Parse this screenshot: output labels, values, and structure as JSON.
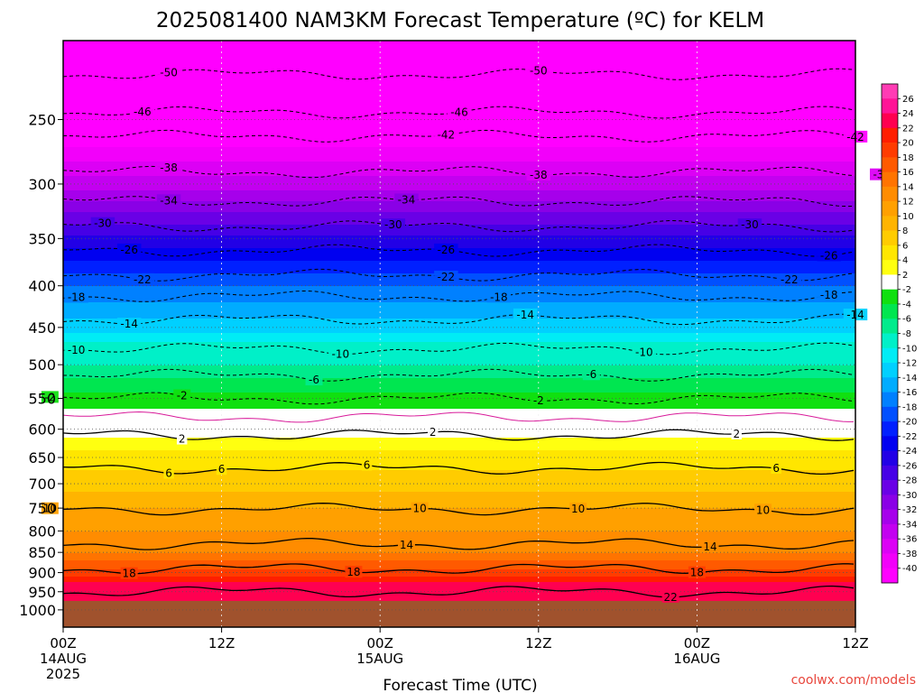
{
  "chart_data": {
    "type": "heatmap",
    "title": "2025081400 NAM3KM Forecast Temperature (ºC) for KELM",
    "xlabel": "Forecast Time (UTC)",
    "ylabel": "",
    "credit": "coolwx.com/models",
    "y_scale": "log-pressure",
    "ylim_hPa": [
      1050,
      200
    ],
    "y_ticks": [
      250,
      300,
      350,
      400,
      450,
      500,
      550,
      600,
      650,
      700,
      750,
      800,
      850,
      900,
      950,
      1000
    ],
    "x_ticks": [
      {
        "label": "00Z",
        "date": "14AUG",
        "year": "2025"
      },
      {
        "label": "12Z",
        "date": "",
        "year": ""
      },
      {
        "label": "00Z",
        "date": "15AUG",
        "year": ""
      },
      {
        "label": "12Z",
        "date": "",
        "year": ""
      },
      {
        "label": "00Z",
        "date": "16AUG",
        "year": ""
      },
      {
        "label": "12Z",
        "date": "",
        "year": ""
      }
    ],
    "x_hours": [
      0,
      12,
      24,
      36,
      48,
      60
    ],
    "grid": true,
    "ground_below_hPa": 975,
    "profile": [
      {
        "p": 975,
        "t": 24
      },
      {
        "p": 925,
        "t": 22
      },
      {
        "p": 900,
        "t": 19
      },
      {
        "p": 850,
        "t": 14
      },
      {
        "p": 800,
        "t": 12
      },
      {
        "p": 750,
        "t": 10
      },
      {
        "p": 700,
        "t": 7
      },
      {
        "p": 650,
        "t": 5
      },
      {
        "p": 615,
        "t": 2
      },
      {
        "p": 600,
        "t": 0
      },
      {
        "p": 578,
        "t": -1
      },
      {
        "p": 565,
        "t": -2
      },
      {
        "p": 550,
        "t": -3
      },
      {
        "p": 500,
        "t": -8
      },
      {
        "p": 470,
        "t": -10
      },
      {
        "p": 450,
        "t": -13
      },
      {
        "p": 400,
        "t": -18
      },
      {
        "p": 360,
        "t": -24
      },
      {
        "p": 330,
        "t": -29
      },
      {
        "p": 300,
        "t": -35
      },
      {
        "p": 270,
        "t": -40
      },
      {
        "p": 250,
        "t": -44
      },
      {
        "p": 200,
        "t": -54
      }
    ],
    "contours": [
      {
        "t": -50,
        "p": 220,
        "style": "dashed",
        "labels": [
          [
            6,
            "-50"
          ],
          [
            34,
            "-50"
          ]
        ]
      },
      {
        "t": -46,
        "p": 245,
        "style": "dashed",
        "labels": [
          [
            4,
            "-46"
          ],
          [
            28,
            "-46"
          ]
        ]
      },
      {
        "t": -42,
        "p": 262,
        "style": "dashed",
        "labels": [
          [
            27,
            "-42"
          ],
          [
            58,
            "-42"
          ]
        ]
      },
      {
        "t": -38,
        "p": 290,
        "style": "dashed",
        "labels": [
          [
            6,
            "-38"
          ],
          [
            34,
            "-38"
          ],
          [
            60,
            "-38"
          ]
        ]
      },
      {
        "t": -34,
        "p": 315,
        "style": "dashed",
        "labels": [
          [
            6,
            "-34"
          ],
          [
            24,
            "-34"
          ]
        ]
      },
      {
        "t": -30,
        "p": 338,
        "style": "dashed",
        "labels": [
          [
            1,
            "-30"
          ],
          [
            23,
            "-30"
          ],
          [
            50,
            "-30"
          ]
        ]
      },
      {
        "t": -26,
        "p": 362,
        "style": "dashed",
        "labels": [
          [
            3,
            "-26"
          ],
          [
            27,
            "-26"
          ],
          [
            56,
            "-26"
          ]
        ]
      },
      {
        "t": -22,
        "p": 388,
        "style": "dashed",
        "labels": [
          [
            4,
            "-22"
          ],
          [
            27,
            "-22"
          ],
          [
            53,
            "-22"
          ]
        ]
      },
      {
        "t": -18,
        "p": 412,
        "style": "dashed",
        "labels": [
          [
            -1,
            "-18"
          ],
          [
            31,
            "-18"
          ],
          [
            56,
            "-18"
          ]
        ]
      },
      {
        "t": -14,
        "p": 440,
        "style": "dashed",
        "labels": [
          [
            3,
            "-14"
          ],
          [
            33,
            "-14"
          ],
          [
            58,
            "-14"
          ]
        ]
      },
      {
        "t": -10,
        "p": 478,
        "style": "dashed",
        "labels": [
          [
            -1,
            "-10"
          ],
          [
            19,
            "-10"
          ],
          [
            42,
            "-10"
          ]
        ]
      },
      {
        "t": -6,
        "p": 515,
        "style": "dashed",
        "labels": [
          [
            17,
            "-6"
          ],
          [
            38,
            "-6"
          ]
        ]
      },
      {
        "t": -2,
        "p": 550,
        "style": "dashed",
        "labels": [
          [
            -3,
            "-2"
          ],
          [
            7,
            "-2"
          ],
          [
            34,
            "-2"
          ]
        ]
      },
      {
        "t": 0,
        "p": 580,
        "style": "magenta",
        "labels": []
      },
      {
        "t": 2,
        "p": 610,
        "style": "solid",
        "labels": [
          [
            7,
            "2"
          ],
          [
            26,
            "2"
          ],
          [
            49,
            "2"
          ]
        ]
      },
      {
        "t": 6,
        "p": 670,
        "style": "solid",
        "labels": [
          [
            6,
            "6"
          ],
          [
            10,
            "6"
          ],
          [
            21,
            "6"
          ],
          [
            52,
            "6"
          ]
        ]
      },
      {
        "t": 10,
        "p": 752,
        "style": "solid",
        "labels": [
          [
            -3,
            "10"
          ],
          [
            25,
            "10"
          ],
          [
            37,
            "10"
          ],
          [
            51,
            "10"
          ]
        ]
      },
      {
        "t": 14,
        "p": 830,
        "style": "solid",
        "labels": [
          [
            24,
            "14"
          ],
          [
            47,
            "14"
          ]
        ]
      },
      {
        "t": 18,
        "p": 890,
        "style": "solid",
        "labels": [
          [
            3,
            "18"
          ],
          [
            20,
            "18"
          ],
          [
            46,
            "18"
          ]
        ]
      },
      {
        "t": 22,
        "p": 950,
        "style": "solid",
        "labels": [
          [
            44,
            "22"
          ]
        ]
      }
    ],
    "colorbar": {
      "levels": [
        -40,
        -38,
        -36,
        -34,
        -32,
        -30,
        -28,
        -26,
        -24,
        -22,
        -20,
        -18,
        -16,
        -14,
        -12,
        -10,
        -8,
        -6,
        -4,
        -2,
        2,
        4,
        6,
        8,
        10,
        12,
        14,
        16,
        18,
        20,
        22,
        24,
        26
      ],
      "colors": [
        "#ff00ff",
        "#f200fa",
        "#dc00f5",
        "#c300f0",
        "#a600eb",
        "#8a00e6",
        "#6a00e6",
        "#4600e6",
        "#2200e6",
        "#0000f0",
        "#0020ff",
        "#0050ff",
        "#0080ff",
        "#00acff",
        "#00d0ff",
        "#00ecf5",
        "#00f0c8",
        "#00eb8c",
        "#00e650",
        "#10e010",
        "#ffffff",
        "#ffff10",
        "#ffe600",
        "#ffcc00",
        "#ffb400",
        "#ffa000",
        "#ff8c00",
        "#ff7400",
        "#ff5a00",
        "#ff3c00",
        "#ff1e00",
        "#ff0050",
        "#ff1496",
        "#ff3cb4"
      ]
    }
  }
}
